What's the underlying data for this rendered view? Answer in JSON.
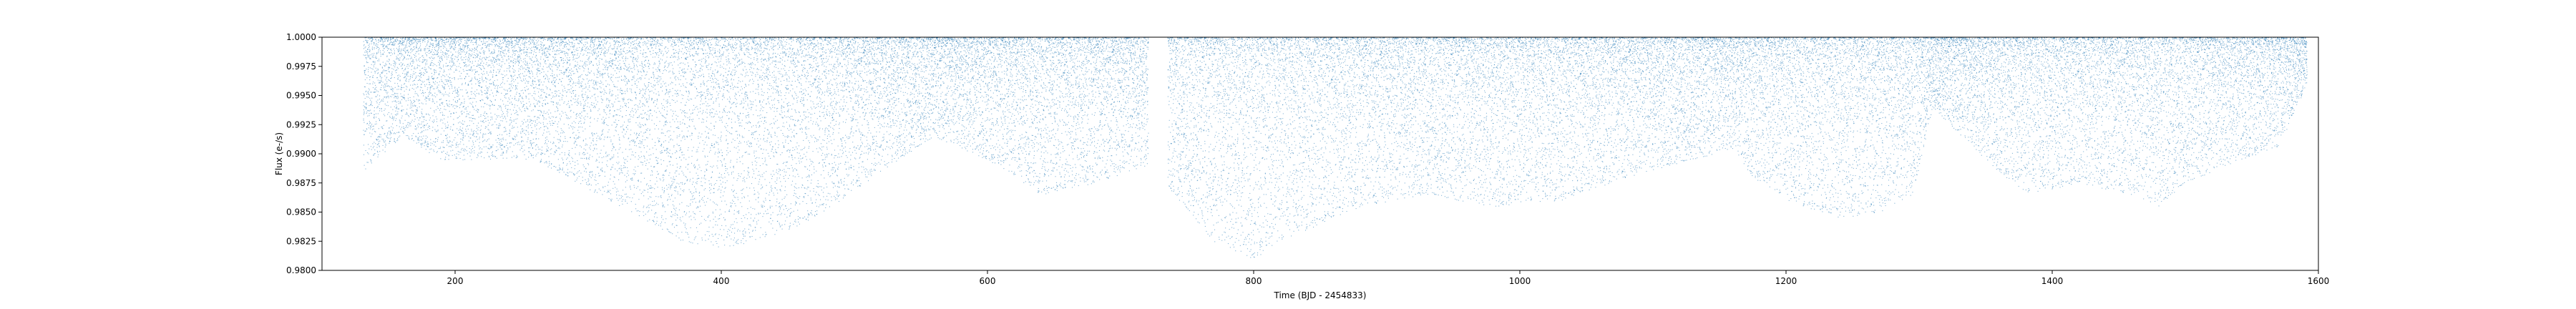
{
  "chart_data": {
    "type": "scatter",
    "title": "",
    "xlabel": "Time (BJD - 2454833)",
    "ylabel": "Flux (e-/s)",
    "xlim": [
      100,
      1600
    ],
    "ylim": [
      0.98,
      1.0
    ],
    "x_ticks": [
      200,
      400,
      600,
      800,
      1000,
      1200,
      1400,
      1600
    ],
    "x_tick_labels": [
      "200",
      "400",
      "600",
      "800",
      "1000",
      "1200",
      "1400",
      "1600"
    ],
    "y_ticks": [
      0.98,
      0.9825,
      0.985,
      0.9875,
      0.99,
      0.9925,
      0.995,
      0.9975,
      1.0
    ],
    "y_tick_labels": [
      "0.9800",
      "0.9825",
      "0.9850",
      "0.9875",
      "0.9900",
      "0.9925",
      "0.9950",
      "0.9975",
      "1.0000"
    ],
    "grid": false,
    "marker_color": "#1f77b4",
    "series": [
      {
        "x_range": [
          131,
          1591
        ],
        "gaps": [
          [
            721,
            735
          ]
        ],
        "lower_envelope": {
          "x": [
            131,
            160,
            190,
            230,
            260,
            300,
            340,
            370,
            400,
            430,
            470,
            520,
            560,
            600,
            640,
            680,
            720,
            740,
            770,
            800,
            830,
            880,
            930,
            980,
            1030,
            1080,
            1130,
            1160,
            1175,
            1200,
            1240,
            1270,
            1295,
            1310,
            1350,
            1380,
            1420,
            1460,
            1480,
            1500,
            1540,
            1570,
            1591
          ],
          "y": [
            0.9885,
            0.9915,
            0.9895,
            0.9895,
            0.9895,
            0.987,
            0.9845,
            0.9825,
            0.982,
            0.9825,
            0.9845,
            0.9885,
            0.9915,
            0.9895,
            0.9865,
            0.9875,
            0.989,
            0.9865,
            0.9825,
            0.981,
            0.983,
            0.9855,
            0.9865,
            0.9855,
            0.986,
            0.988,
            0.9895,
            0.9905,
            0.988,
            0.986,
            0.9845,
            0.985,
            0.9865,
            0.994,
            0.9895,
            0.9865,
            0.9875,
            0.9865,
            0.9855,
            0.9875,
            0.9895,
            0.9905,
            0.996
          ]
        }
      }
    ]
  }
}
